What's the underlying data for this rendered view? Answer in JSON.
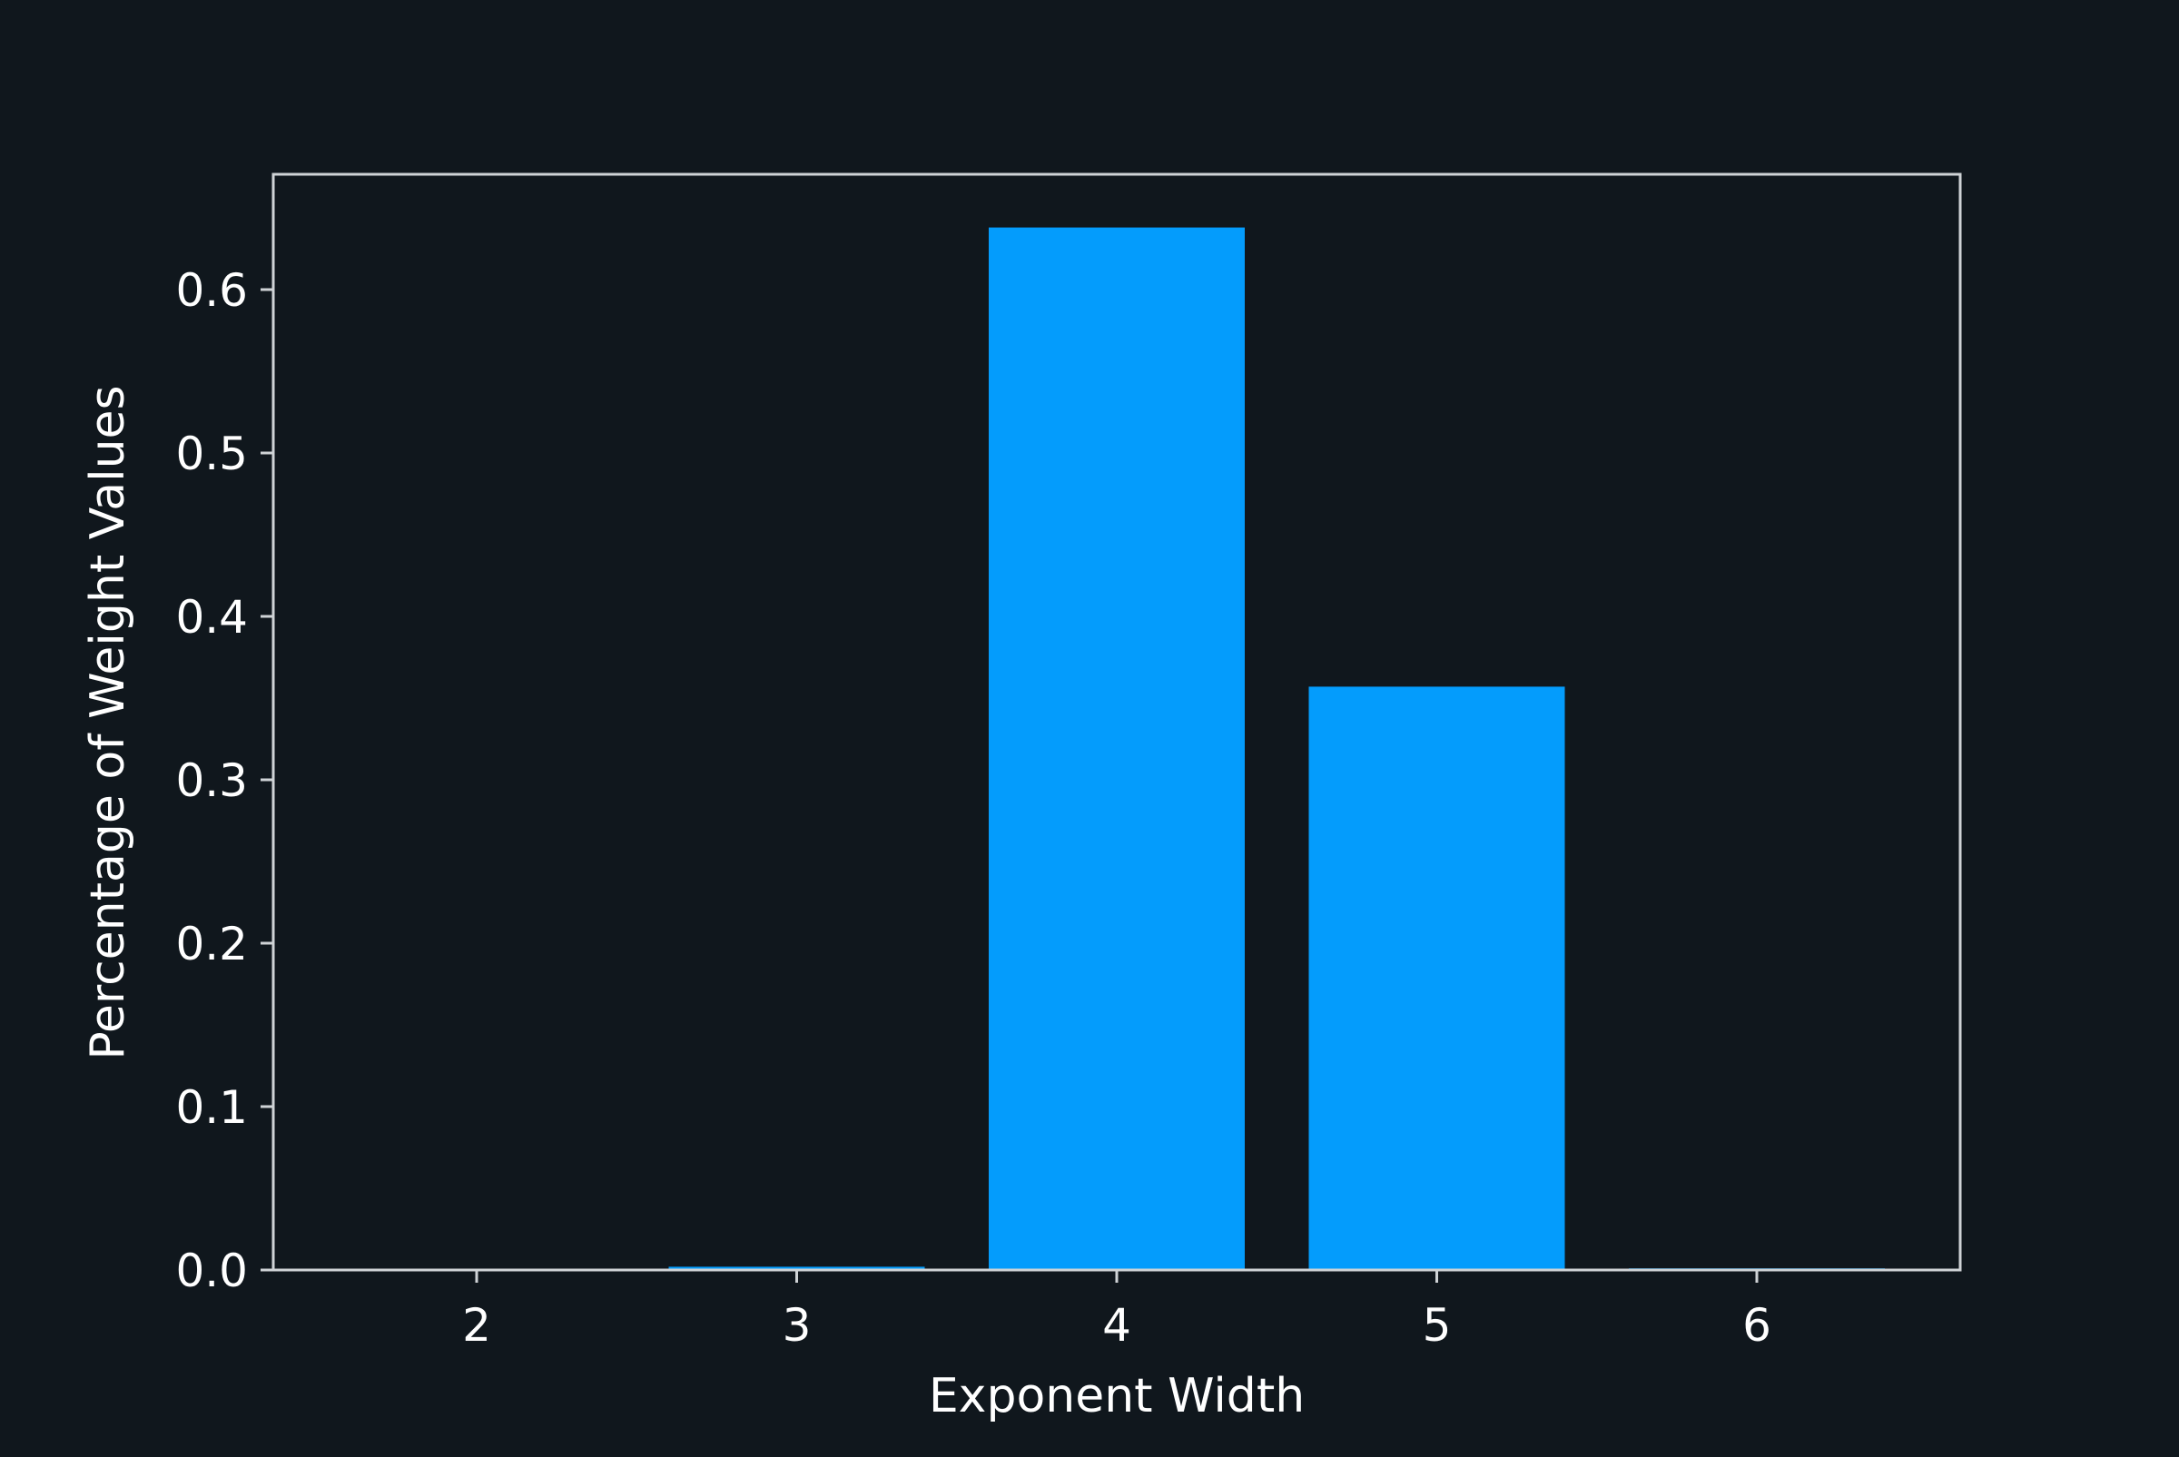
{
  "chart_data": {
    "type": "bar",
    "title": "",
    "xlabel": "Exponent Width",
    "ylabel": "Percentage of Weight Values",
    "categories": [
      "2",
      "3",
      "4",
      "5",
      "6"
    ],
    "values": [
      0.0,
      0.002,
      0.638,
      0.357,
      0.001
    ],
    "ylim": [
      0,
      0.67
    ],
    "yticks": [
      0.0,
      0.1,
      0.2,
      0.3,
      0.4,
      0.5,
      0.6
    ],
    "ytick_labels": [
      "0.0",
      "0.1",
      "0.2",
      "0.3",
      "0.4",
      "0.5",
      "0.6"
    ],
    "grid": false,
    "legend": "none",
    "colors": {
      "background": "#10171d",
      "bar": "#049cfc",
      "axis": "#cfd3d6",
      "text": "#ffffff"
    }
  }
}
